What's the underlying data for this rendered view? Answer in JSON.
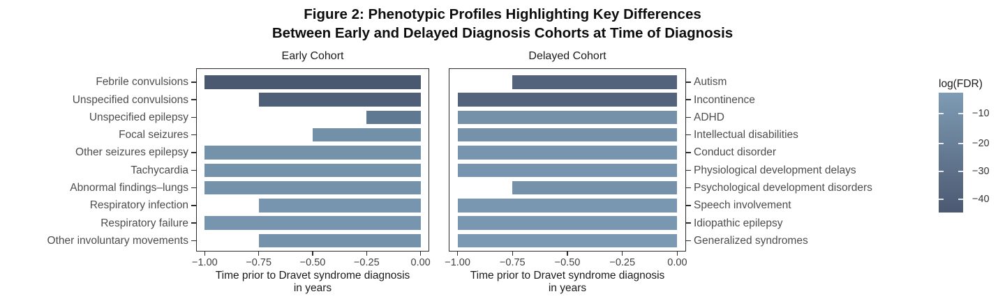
{
  "figure_title": {
    "line1": "Figure 2: Phenotypic Profiles Highlighting Key Differences",
    "line2": "Between Early and Delayed Diagnosis Cohorts at Time of Diagnosis"
  },
  "chart_data": [
    {
      "type": "bar",
      "orientation": "horizontal",
      "panel_title": "Early Cohort",
      "label_side": "left",
      "x_axis": {
        "label_line1": "Time prior to Dravet syndrome diagnosis",
        "label_line2": "in years",
        "range": [
          -1.04,
          0.04
        ],
        "ticks": [
          -1.0,
          -0.75,
          -0.5,
          -0.25,
          0.0
        ],
        "tick_labels": [
          "−1.00",
          "−0.75",
          "−0.50",
          "−0.25",
          "0.00"
        ]
      },
      "bars": [
        {
          "label": "Febrile convulsions",
          "value": -1.0,
          "color": "#4a5970",
          "log_fdr_approx": -45
        },
        {
          "label": "Unspecified convulsions",
          "value": -0.75,
          "color": "#4f5f78",
          "log_fdr_approx": -40
        },
        {
          "label": "Unspecified epilepsy",
          "value": -0.25,
          "color": "#5f7993",
          "log_fdr_approx": -25
        },
        {
          "label": "Focal seizures",
          "value": -0.5,
          "color": "#7390a9",
          "log_fdr_approx": -13
        },
        {
          "label": "Other seizures epilepsy",
          "value": -1.0,
          "color": "#7592ab",
          "log_fdr_approx": -12
        },
        {
          "label": "Tachycardia",
          "value": -1.0,
          "color": "#7592ab",
          "log_fdr_approx": -12
        },
        {
          "label": "Abnormal findings–lungs",
          "value": -1.0,
          "color": "#7592ab",
          "log_fdr_approx": -12
        },
        {
          "label": "Respiratory infection",
          "value": -0.75,
          "color": "#7795ae",
          "log_fdr_approx": -11
        },
        {
          "label": "Respiratory failure",
          "value": -1.0,
          "color": "#7795ae",
          "log_fdr_approx": -11
        },
        {
          "label": "Other involuntary movements",
          "value": -0.75,
          "color": "#7592ab",
          "log_fdr_approx": -12
        }
      ]
    },
    {
      "type": "bar",
      "orientation": "horizontal",
      "panel_title": "Delayed Cohort",
      "label_side": "right",
      "x_axis": {
        "label_line1": "Time prior to Dravet syndrome diagnosis",
        "label_line2": "in years",
        "range": [
          -1.04,
          0.04
        ],
        "ticks": [
          -1.0,
          -0.75,
          -0.5,
          -0.25,
          0.0
        ],
        "tick_labels": [
          "−1.00",
          "−0.75",
          "−0.50",
          "−0.25",
          "0.00"
        ]
      },
      "bars": [
        {
          "label": "Autism",
          "value": -0.75,
          "color": "#54637c",
          "log_fdr_approx": -36
        },
        {
          "label": "Incontinence",
          "value": -1.0,
          "color": "#54637c",
          "log_fdr_approx": -36
        },
        {
          "label": "ADHD",
          "value": -1.0,
          "color": "#7590a9",
          "log_fdr_approx": -13
        },
        {
          "label": "Intellectual disabilities",
          "value": -1.0,
          "color": "#7692ab",
          "log_fdr_approx": -12
        },
        {
          "label": "Conduct disorder",
          "value": -1.0,
          "color": "#7795ae",
          "log_fdr_approx": -11
        },
        {
          "label": "Physiological development delays",
          "value": -1.0,
          "color": "#7795ae",
          "log_fdr_approx": -11
        },
        {
          "label": "Psychological development disorders",
          "value": -0.75,
          "color": "#7692ab",
          "log_fdr_approx": -12
        },
        {
          "label": "Speech involvement",
          "value": -1.0,
          "color": "#7997b0",
          "log_fdr_approx": -10
        },
        {
          "label": "Idiopathic epilepsy",
          "value": -1.0,
          "color": "#7997b0",
          "log_fdr_approx": -10
        },
        {
          "label": "Generalized syndromes",
          "value": -1.0,
          "color": "#7b99b2",
          "log_fdr_approx": -9
        }
      ]
    }
  ],
  "colorbar": {
    "title": "log(FDR)",
    "tick_labels": [
      "−10",
      "−20",
      "−30",
      "−40"
    ],
    "tick_positions_pct": [
      17.4,
      42.4,
      65.7,
      89.0
    ],
    "gradient_top": "#7e9cb4",
    "gradient_bottom": "#4b5971"
  }
}
